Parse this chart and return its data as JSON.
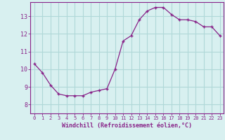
{
  "hours": [
    0,
    1,
    2,
    3,
    4,
    5,
    6,
    7,
    8,
    9,
    10,
    11,
    12,
    13,
    14,
    15,
    16,
    17,
    18,
    19,
    20,
    21,
    22,
    23
  ],
  "values": [
    10.3,
    9.8,
    9.1,
    8.6,
    8.5,
    8.5,
    8.5,
    8.7,
    8.8,
    8.9,
    10.0,
    11.6,
    11.9,
    12.8,
    13.3,
    13.5,
    13.5,
    13.1,
    12.8,
    12.8,
    12.7,
    12.4,
    12.4,
    11.9
  ],
  "ylim": [
    7.5,
    13.8
  ],
  "yticks": [
    8,
    9,
    10,
    11,
    12,
    13
  ],
  "xlim": [
    -0.5,
    23.5
  ],
  "xticks": [
    0,
    1,
    2,
    3,
    4,
    5,
    6,
    7,
    8,
    9,
    10,
    11,
    12,
    13,
    14,
    15,
    16,
    17,
    18,
    19,
    20,
    21,
    22,
    23
  ],
  "line_color": "#882288",
  "marker": "+",
  "bg_color": "#d8f0f0",
  "grid_color": "#b0d8d8",
  "xlabel": "Windchill (Refroidissement éolien,°C)"
}
